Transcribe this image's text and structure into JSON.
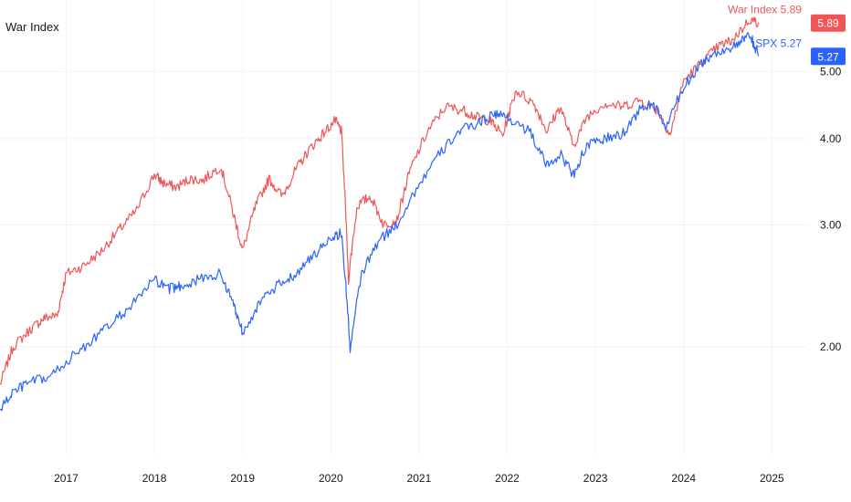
{
  "chart_data": {
    "type": "line",
    "title": "War Index",
    "xlim": [
      2016.25,
      2025.4
    ],
    "ylim": [
      1.4,
      6.35
    ],
    "log_scale": true,
    "grid": true,
    "x_ticks": [
      2017,
      2018,
      2019,
      2020,
      2021,
      2022,
      2023,
      2024,
      2025
    ],
    "x_tick_labels": [
      "2017",
      "2018",
      "2019",
      "2020",
      "2021",
      "2022",
      "2023",
      "2024",
      "2025"
    ],
    "y_ticks": [
      2.0,
      3.0,
      4.0,
      5.0
    ],
    "y_tick_labels": [
      "2.00",
      "3.00",
      "4.00",
      "5.00"
    ],
    "series": [
      {
        "name": "War Index",
        "label": "War Index 5.89",
        "last_value": "5.89",
        "color": "#f05656",
        "points": [
          [
            2016.25,
            1.76
          ],
          [
            2016.4,
            2.0
          ],
          [
            2016.6,
            2.12
          ],
          [
            2016.75,
            2.2
          ],
          [
            2016.9,
            2.22
          ],
          [
            2017.0,
            2.55
          ],
          [
            2017.2,
            2.62
          ],
          [
            2017.4,
            2.75
          ],
          [
            2017.6,
            2.95
          ],
          [
            2017.8,
            3.15
          ],
          [
            2018.0,
            3.55
          ],
          [
            2018.1,
            3.45
          ],
          [
            2018.25,
            3.4
          ],
          [
            2018.4,
            3.5
          ],
          [
            2018.55,
            3.48
          ],
          [
            2018.75,
            3.65
          ],
          [
            2018.9,
            3.1
          ],
          [
            2019.0,
            2.75
          ],
          [
            2019.15,
            3.2
          ],
          [
            2019.3,
            3.5
          ],
          [
            2019.45,
            3.3
          ],
          [
            2019.6,
            3.6
          ],
          [
            2019.75,
            3.85
          ],
          [
            2019.9,
            4.05
          ],
          [
            2020.05,
            4.25
          ],
          [
            2020.12,
            4.1
          ],
          [
            2020.2,
            2.5
          ],
          [
            2020.3,
            3.2
          ],
          [
            2020.45,
            3.3
          ],
          [
            2020.6,
            3.0
          ],
          [
            2020.75,
            3.05
          ],
          [
            2020.9,
            3.6
          ],
          [
            2021.1,
            4.1
          ],
          [
            2021.3,
            4.45
          ],
          [
            2021.5,
            4.4
          ],
          [
            2021.65,
            4.3
          ],
          [
            2021.8,
            4.25
          ],
          [
            2021.95,
            4.05
          ],
          [
            2022.1,
            4.7
          ],
          [
            2022.3,
            4.5
          ],
          [
            2022.45,
            4.1
          ],
          [
            2022.6,
            4.45
          ],
          [
            2022.75,
            3.9
          ],
          [
            2022.9,
            4.3
          ],
          [
            2023.1,
            4.5
          ],
          [
            2023.3,
            4.45
          ],
          [
            2023.5,
            4.55
          ],
          [
            2023.7,
            4.4
          ],
          [
            2023.85,
            4.05
          ],
          [
            2024.0,
            4.85
          ],
          [
            2024.2,
            5.15
          ],
          [
            2024.4,
            5.45
          ],
          [
            2024.55,
            5.55
          ],
          [
            2024.75,
            5.95
          ],
          [
            2024.85,
            5.89
          ]
        ]
      },
      {
        "name": "SPX",
        "label": "SPX 5.27",
        "last_value": "5.27",
        "color": "#2962ff",
        "points": [
          [
            2016.25,
            1.62
          ],
          [
            2016.4,
            1.72
          ],
          [
            2016.6,
            1.78
          ],
          [
            2016.8,
            1.8
          ],
          [
            2017.0,
            1.9
          ],
          [
            2017.25,
            2.02
          ],
          [
            2017.5,
            2.15
          ],
          [
            2017.75,
            2.3
          ],
          [
            2018.0,
            2.5
          ],
          [
            2018.15,
            2.42
          ],
          [
            2018.3,
            2.45
          ],
          [
            2018.5,
            2.5
          ],
          [
            2018.75,
            2.55
          ],
          [
            2018.9,
            2.3
          ],
          [
            2019.0,
            2.1
          ],
          [
            2019.2,
            2.32
          ],
          [
            2019.4,
            2.45
          ],
          [
            2019.6,
            2.55
          ],
          [
            2019.8,
            2.7
          ],
          [
            2020.0,
            2.88
          ],
          [
            2020.12,
            2.92
          ],
          [
            2020.22,
            1.98
          ],
          [
            2020.35,
            2.55
          ],
          [
            2020.55,
            2.85
          ],
          [
            2020.75,
            3.0
          ],
          [
            2020.95,
            3.35
          ],
          [
            2021.2,
            3.75
          ],
          [
            2021.45,
            4.1
          ],
          [
            2021.65,
            4.2
          ],
          [
            2021.85,
            4.35
          ],
          [
            2022.0,
            4.3
          ],
          [
            2022.25,
            4.1
          ],
          [
            2022.45,
            3.65
          ],
          [
            2022.6,
            3.8
          ],
          [
            2022.75,
            3.55
          ],
          [
            2022.9,
            3.9
          ],
          [
            2023.1,
            4.0
          ],
          [
            2023.3,
            4.05
          ],
          [
            2023.5,
            4.4
          ],
          [
            2023.65,
            4.5
          ],
          [
            2023.8,
            4.15
          ],
          [
            2024.0,
            4.75
          ],
          [
            2024.2,
            5.15
          ],
          [
            2024.4,
            5.35
          ],
          [
            2024.6,
            5.45
          ],
          [
            2024.75,
            5.65
          ],
          [
            2024.85,
            5.27
          ]
        ]
      }
    ]
  }
}
